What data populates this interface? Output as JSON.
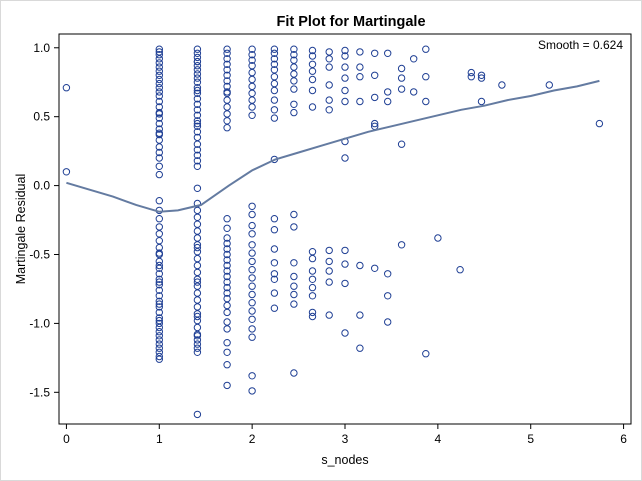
{
  "chart_data": {
    "type": "scatter",
    "title": "Fit Plot for Martingale",
    "xlabel": "s_nodes",
    "ylabel": "Martingale Residual",
    "xlim": [
      -0.08,
      6.08
    ],
    "ylim": [
      -1.73,
      1.1
    ],
    "x_ticks": [
      0,
      1,
      2,
      3,
      4,
      5,
      6
    ],
    "x_tick_labels": [
      "0",
      "1",
      "2",
      "3",
      "4",
      "5",
      "6"
    ],
    "y_ticks": [
      -1.5,
      -1.0,
      -0.5,
      0.0,
      0.5,
      1.0
    ],
    "y_tick_labels": [
      "-1.5",
      "-1.0",
      "-0.5",
      "0.0",
      "0.5",
      "1.0"
    ],
    "grid": false,
    "annotation": "Smooth = 0.624",
    "colors": {
      "marker": "#1f3f94",
      "smooth_line": "#647ba1",
      "axis": "#000000",
      "frame": "#d9d9d9"
    },
    "series": [
      {
        "marker": "open-circle",
        "x": [
          0,
          0
        ],
        "y": [
          0.71,
          0.1
        ]
      },
      {
        "marker": "open-circle",
        "x": [
          1,
          1,
          1,
          1,
          1,
          1,
          1,
          1,
          1,
          1,
          1,
          1,
          1,
          1,
          1,
          1,
          1,
          1,
          1,
          1,
          1,
          1,
          1,
          1,
          1,
          1,
          1,
          1,
          1,
          1,
          1,
          1,
          1,
          1,
          1,
          1,
          1,
          1,
          1,
          1,
          1,
          1,
          1,
          1,
          1,
          1,
          1,
          1,
          1,
          1,
          1,
          1,
          1,
          1,
          1,
          1,
          1,
          1,
          1,
          1,
          1,
          1
        ],
        "y": [
          0.99,
          0.97,
          0.95,
          0.92,
          0.89,
          0.86,
          0.83,
          0.8,
          0.77,
          0.74,
          0.71,
          0.68,
          0.65,
          0.61,
          0.57,
          0.53,
          0.49,
          0.45,
          0.41,
          0.37,
          0.33,
          0.28,
          0.24,
          0.2,
          0.14,
          0.08,
          -0.11,
          -0.18,
          -0.24,
          -0.3,
          -0.35,
          -0.4,
          -0.45,
          -0.5,
          -0.55,
          -0.6,
          -0.64,
          -0.68,
          -0.72,
          -0.76,
          -0.8,
          -0.84,
          -0.88,
          -0.92,
          -0.96,
          -1.0,
          -1.03,
          -1.06,
          -1.09,
          -1.12,
          -1.15,
          -1.18,
          -1.21,
          -1.24,
          -1.26,
          -0.98,
          -0.86,
          -0.7,
          -0.58,
          -0.49,
          0.52,
          0.38
        ]
      },
      {
        "marker": "open-circle",
        "x": [
          1.41,
          1.41,
          1.41,
          1.41,
          1.41,
          1.41,
          1.41,
          1.41,
          1.41,
          1.41,
          1.41,
          1.41,
          1.41,
          1.41,
          1.41,
          1.41,
          1.41,
          1.41,
          1.41,
          1.41,
          1.41,
          1.41,
          1.41,
          1.41,
          1.41,
          1.41,
          1.41,
          1.41,
          1.41,
          1.41,
          1.41,
          1.41,
          1.41,
          1.41,
          1.41,
          1.41,
          1.41,
          1.41,
          1.41,
          1.41,
          1.41,
          1.41,
          1.41,
          1.41,
          1.41,
          1.41,
          1.41,
          1.41,
          1.41,
          1.41,
          1.41,
          1.41,
          1.41,
          1.41,
          1.41,
          1.41,
          1.41
        ],
        "y": [
          0.99,
          0.96,
          0.93,
          0.9,
          0.87,
          0.84,
          0.81,
          0.78,
          0.75,
          0.71,
          0.67,
          0.63,
          0.59,
          0.55,
          0.51,
          0.47,
          0.43,
          0.39,
          0.35,
          0.3,
          0.26,
          0.22,
          0.18,
          -0.13,
          -0.18,
          -0.23,
          -0.28,
          -0.33,
          -0.38,
          -0.43,
          -0.48,
          -0.53,
          -0.58,
          -0.63,
          -0.68,
          -0.73,
          -0.78,
          -0.83,
          -0.88,
          -0.93,
          -0.98,
          -1.03,
          -1.08,
          -1.12,
          -1.15,
          -1.18,
          -1.21,
          -1.66,
          0.14,
          -0.02,
          -0.45,
          -0.7,
          -0.95,
          0.45,
          0.69,
          0.9,
          -1.09
        ]
      },
      {
        "marker": "open-circle",
        "x": [
          1.73,
          1.73,
          1.73,
          1.73,
          1.73,
          1.73,
          1.73,
          1.73,
          1.73,
          1.73,
          1.73,
          1.73,
          1.73,
          1.73,
          1.73,
          1.73,
          1.73,
          1.73,
          1.73,
          1.73,
          1.73,
          1.73,
          1.73,
          1.73,
          1.73,
          1.73,
          1.73,
          1.73,
          1.73,
          1.73,
          1.73,
          1.73,
          1.73,
          1.73,
          1.73,
          1.73,
          1.73
        ],
        "y": [
          0.99,
          0.96,
          0.92,
          0.88,
          0.84,
          0.8,
          0.76,
          0.72,
          0.67,
          0.62,
          0.57,
          0.52,
          0.47,
          0.42,
          -0.24,
          -0.31,
          -0.38,
          -0.42,
          -0.46,
          -0.5,
          -0.54,
          -0.58,
          -0.62,
          -0.66,
          -0.7,
          -0.74,
          -0.78,
          -0.82,
          -0.87,
          -0.92,
          -0.99,
          -1.04,
          -1.14,
          -1.21,
          -1.3,
          -1.45,
          0.68
        ]
      },
      {
        "marker": "open-circle",
        "x": [
          2,
          2,
          2,
          2,
          2,
          2,
          2,
          2,
          2,
          2,
          2,
          2,
          2,
          2,
          2,
          2,
          2,
          2,
          2,
          2,
          2,
          2,
          2,
          2,
          2,
          2,
          2,
          2,
          2
        ],
        "y": [
          0.99,
          0.95,
          0.91,
          0.87,
          0.82,
          0.77,
          0.72,
          0.67,
          0.62,
          0.57,
          0.51,
          -0.15,
          -0.21,
          -0.29,
          -0.35,
          -0.43,
          -0.49,
          -0.55,
          -0.61,
          -0.67,
          -0.73,
          -0.79,
          -0.85,
          -0.91,
          -0.97,
          -1.04,
          -1.1,
          -1.38,
          -1.49
        ]
      },
      {
        "marker": "open-circle",
        "x": [
          2.24,
          2.24,
          2.24,
          2.24,
          2.24,
          2.24,
          2.24,
          2.24,
          2.24,
          2.24,
          2.24,
          2.24,
          2.24,
          2.24,
          2.24,
          2.24,
          2.24,
          2.24,
          2.24,
          2.24
        ],
        "y": [
          0.99,
          0.96,
          0.92,
          0.88,
          0.84,
          0.79,
          0.74,
          0.69,
          0.62,
          0.55,
          0.49,
          0.19,
          -0.24,
          -0.32,
          -0.46,
          -0.56,
          -0.64,
          -0.68,
          -0.78,
          -0.89
        ]
      },
      {
        "marker": "open-circle",
        "x": [
          2.45,
          2.45,
          2.45,
          2.45,
          2.45,
          2.45,
          2.45,
          2.45,
          2.45,
          2.45,
          2.45,
          2.45,
          2.45,
          2.45,
          2.45,
          2.45,
          2.45
        ],
        "y": [
          0.99,
          0.95,
          0.91,
          0.86,
          0.81,
          0.76,
          0.7,
          0.59,
          0.53,
          -0.21,
          -0.3,
          -0.56,
          -0.66,
          -0.73,
          -0.79,
          -0.86,
          -1.36
        ]
      },
      {
        "marker": "open-circle",
        "x": [
          2.65,
          2.65,
          2.65,
          2.65,
          2.65,
          2.65,
          2.65,
          2.65,
          2.65,
          2.65,
          2.65,
          2.65,
          2.65,
          2.65,
          2.65
        ],
        "y": [
          0.98,
          0.94,
          0.88,
          0.83,
          0.77,
          0.69,
          0.57,
          -0.48,
          -0.53,
          -0.62,
          -0.68,
          -0.74,
          -0.8,
          -0.92,
          -0.95
        ]
      },
      {
        "marker": "open-circle",
        "x": [
          2.83,
          2.83,
          2.83,
          2.83,
          2.83,
          2.83,
          2.83,
          2.83,
          2.83,
          2.83,
          2.83
        ],
        "y": [
          0.97,
          0.92,
          0.86,
          0.73,
          0.62,
          0.55,
          -0.47,
          -0.55,
          -0.62,
          -0.7,
          -0.94
        ]
      },
      {
        "marker": "open-circle",
        "x": [
          3,
          3,
          3,
          3,
          3,
          3,
          3,
          3,
          3,
          3,
          3,
          3
        ],
        "y": [
          0.98,
          0.94,
          0.86,
          0.78,
          0.69,
          0.61,
          0.32,
          0.2,
          -0.47,
          -0.57,
          -0.71,
          -1.07
        ]
      },
      {
        "marker": "open-circle",
        "x": [
          3.16,
          3.16,
          3.16,
          3.16,
          3.16,
          3.16,
          3.16
        ],
        "y": [
          0.97,
          0.86,
          0.79,
          0.61,
          -0.58,
          -0.94,
          -1.18
        ]
      },
      {
        "marker": "open-circle",
        "x": [
          3.32,
          3.32,
          3.32,
          3.32,
          3.32,
          3.32
        ],
        "y": [
          0.96,
          0.8,
          0.64,
          0.45,
          0.43,
          -0.6
        ]
      },
      {
        "marker": "open-circle",
        "x": [
          3.46,
          3.46,
          3.46,
          3.46,
          3.46,
          3.46
        ],
        "y": [
          0.96,
          0.68,
          0.61,
          -0.64,
          -0.8,
          -0.99
        ]
      },
      {
        "marker": "open-circle",
        "x": [
          3.61,
          3.61,
          3.61,
          3.61,
          3.61
        ],
        "y": [
          0.85,
          0.78,
          0.3,
          -0.43,
          0.7
        ]
      },
      {
        "marker": "open-circle",
        "x": [
          3.74,
          3.87,
          3.87,
          3.87,
          4.0,
          4.24,
          4.36,
          4.47,
          4.47,
          4.69,
          4.47,
          5.2,
          5.74
        ],
        "y": [
          0.92,
          0.99,
          0.79,
          0.61,
          -0.38,
          -0.61,
          0.79,
          0.78,
          0.61,
          0.73,
          0.8,
          0.73,
          0.45
        ]
      },
      {
        "marker": "open-circle",
        "x": [
          3.87,
          3.74,
          4.36
        ],
        "y": [
          -1.22,
          0.68,
          0.82
        ]
      },
      {
        "type": "line",
        "x": [
          0,
          0.25,
          0.5,
          0.75,
          1.0,
          1.2,
          1.45,
          1.75,
          2.0,
          2.25,
          2.5,
          2.75,
          3.0,
          3.25,
          3.5,
          3.75,
          4.0,
          4.25,
          4.5,
          4.75,
          5.0,
          5.25,
          5.5,
          5.74
        ],
        "y": [
          0.02,
          -0.03,
          -0.08,
          -0.14,
          -0.19,
          -0.18,
          -0.14,
          0.0,
          0.11,
          0.19,
          0.24,
          0.29,
          0.34,
          0.39,
          0.43,
          0.47,
          0.51,
          0.55,
          0.58,
          0.62,
          0.65,
          0.69,
          0.72,
          0.76
        ]
      }
    ]
  }
}
